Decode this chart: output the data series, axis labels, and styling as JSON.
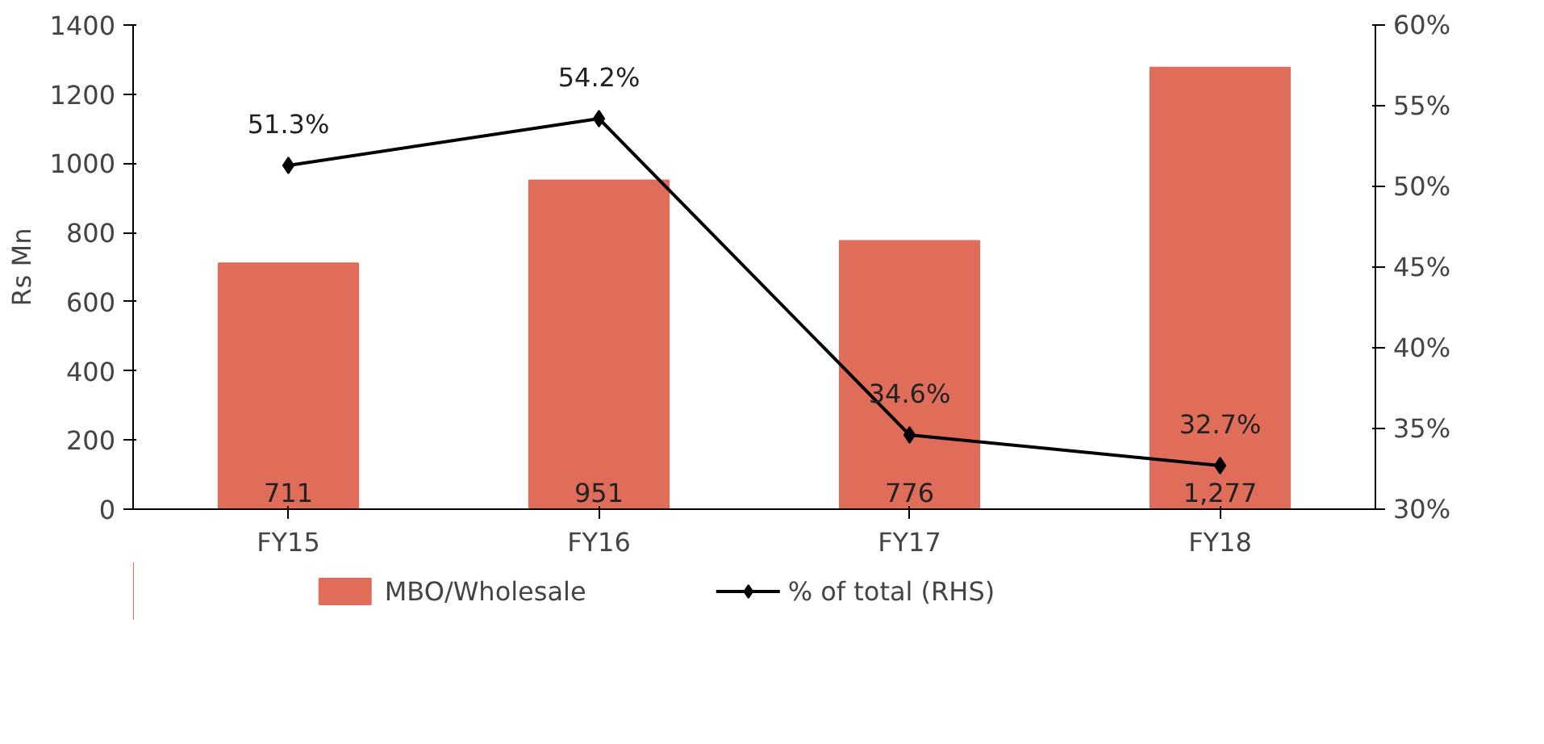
{
  "chart_data": {
    "type": "bar",
    "ylabel": "Rs Mn",
    "categories": [
      "FY15",
      "FY16",
      "FY17",
      "FY18"
    ],
    "series": [
      {
        "name": "MBO/Wholesale",
        "color": "#e06c5a",
        "values": [
          711,
          951,
          776,
          1277
        ],
        "value_labels": [
          "711",
          "951",
          "776",
          "1,277"
        ]
      },
      {
        "name": "% of total (RHS)",
        "type": "line",
        "axis": "y2",
        "color": "#000000",
        "marker": "diamond",
        "values": [
          51.3,
          54.2,
          34.6,
          32.7
        ],
        "value_labels": [
          "51.3%",
          "54.2%",
          "34.6%",
          "32.7%"
        ]
      }
    ],
    "ylim": [
      0,
      1400
    ],
    "yticks": [
      0,
      200,
      400,
      600,
      800,
      1000,
      1200,
      1400
    ],
    "y2lim": [
      30,
      60
    ],
    "y2ticks": [
      {
        "value": 30,
        "label": "30%"
      },
      {
        "value": 35,
        "label": "35%"
      },
      {
        "value": 40,
        "label": "40%"
      },
      {
        "value": 45,
        "label": "45%"
      },
      {
        "value": 50,
        "label": "50%"
      },
      {
        "value": 55,
        "label": "55%"
      },
      {
        "value": 60,
        "label": "60%"
      }
    ],
    "grid": false,
    "legend": "bottom",
    "line_style": "solid"
  }
}
